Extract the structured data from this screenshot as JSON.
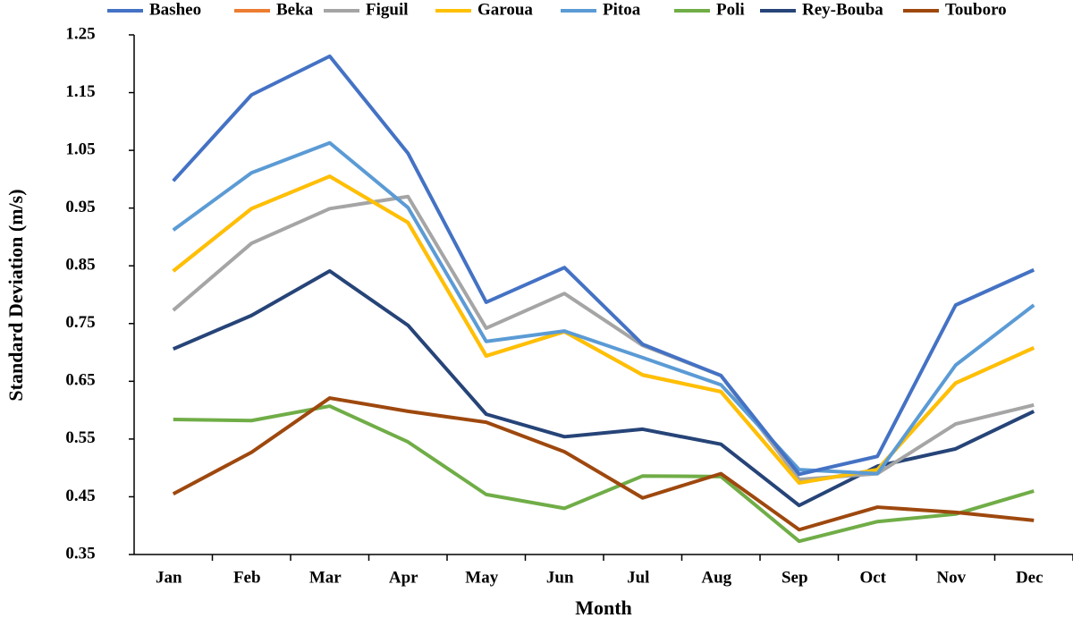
{
  "chart_data": {
    "type": "line",
    "x_label": "Month",
    "y_label": "Standard Deviation (m/s)",
    "categories": [
      "Jan",
      "Feb",
      "Mar",
      "Apr",
      "May",
      "Jun",
      "Jul",
      "Aug",
      "Sep",
      "Oct",
      "Nov",
      "Dec"
    ],
    "ylim": [
      0.35,
      1.25
    ],
    "yticks": [
      0.35,
      0.45,
      0.55,
      0.65,
      0.75,
      0.85,
      0.95,
      1.05,
      1.15,
      1.25
    ],
    "grid": false,
    "legend": "top",
    "series": [
      {
        "name": "Beka",
        "color": "#ed7d31",
        "values": [
          0.841,
          0.949,
          1.005,
          0.925,
          0.694,
          0.736,
          0.661,
          0.632,
          0.474,
          0.497,
          0.647,
          0.708
        ]
      },
      {
        "name": "Poli",
        "color": "#70ad47",
        "values": [
          0.584,
          0.582,
          0.607,
          0.545,
          0.454,
          0.43,
          0.486,
          0.485,
          0.373,
          0.407,
          0.42,
          0.46
        ]
      },
      {
        "name": "Touboro",
        "color": "#9e480e",
        "values": [
          0.455,
          0.527,
          0.621,
          0.598,
          0.579,
          0.528,
          0.448,
          0.49,
          0.393,
          0.432,
          0.423,
          0.409
        ]
      },
      {
        "name": "Rey-Bouba",
        "color": "#264478",
        "values": [
          0.706,
          0.764,
          0.841,
          0.747,
          0.593,
          0.554,
          0.567,
          0.541,
          0.435,
          0.503,
          0.533,
          0.598
        ]
      },
      {
        "name": "Figuil",
        "color": "#a5a5a5",
        "values": [
          0.773,
          0.889,
          0.949,
          0.97,
          0.742,
          0.802,
          0.712,
          0.66,
          0.48,
          0.49,
          0.576,
          0.609
        ]
      },
      {
        "name": "Garoua",
        "color": "#ffc000",
        "values": [
          0.841,
          0.949,
          1.005,
          0.925,
          0.694,
          0.736,
          0.661,
          0.632,
          0.474,
          0.497,
          0.647,
          0.708
        ]
      },
      {
        "name": "Pitoa",
        "color": "#5b9bd5",
        "values": [
          0.912,
          1.011,
          1.063,
          0.951,
          0.719,
          0.737,
          0.691,
          0.644,
          0.497,
          0.49,
          0.678,
          0.782
        ]
      },
      {
        "name": "Basheo",
        "color": "#4472c4",
        "values": [
          0.997,
          1.146,
          1.213,
          1.045,
          0.787,
          0.847,
          0.714,
          0.66,
          0.489,
          0.52,
          0.782,
          0.843
        ]
      }
    ]
  }
}
